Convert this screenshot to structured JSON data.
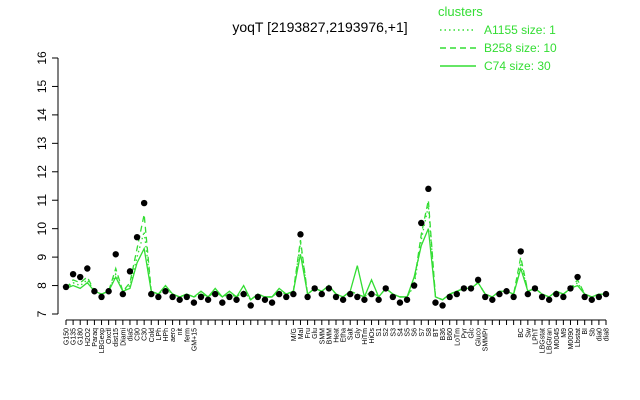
{
  "chart_data": {
    "type": "line",
    "title": "yoqT [2193827,2193976,+1]",
    "legend_title": "clusters",
    "legend": "top-right",
    "categories": [
      "G150",
      "G135",
      "G180",
      "H2O2",
      "Paraq",
      "LBGexp",
      "Oxctl",
      "dist15",
      "Diami",
      "dia5",
      "C90",
      "C30",
      "Cold",
      "LPh",
      "HPh",
      "aero",
      "nit",
      "ferm",
      "GM+15",
      null,
      null,
      null,
      null,
      null,
      null,
      null,
      null,
      null,
      null,
      null,
      null,
      null,
      "M/G",
      "Mal",
      "Fru",
      "Glu",
      "SMM",
      "BMM",
      "Heat",
      "Etha",
      "Salt",
      "Gly",
      "HiTm",
      "HiOs",
      "S1",
      "S2",
      "S3",
      "S4",
      "S5",
      "S6",
      "S7",
      "S8",
      "BT",
      "B36",
      "B60",
      "LoTm",
      "Pyr",
      "Glc",
      "Gluco",
      "SMMPr",
      null,
      null,
      null,
      null,
      "BC",
      "Sw",
      "LPhT",
      "LBGstat",
      "LBGtran",
      "M0045",
      "M9",
      "M0090",
      "Lbstat",
      "BI",
      "Sb",
      "dia0",
      "dia8"
    ],
    "series": [
      {
        "name": "A1155 size: 1",
        "color": "#33dd33",
        "dash": "dotted",
        "values": [
          7.9,
          8.1,
          8.0,
          8.2,
          7.8,
          7.7,
          7.8,
          8.4,
          7.8,
          8.0,
          9.0,
          9.9,
          7.8,
          7.7,
          7.9,
          7.7,
          7.6,
          7.7,
          7.6,
          7.7,
          7.6,
          7.8,
          7.6,
          7.7,
          7.6,
          7.8,
          7.5,
          7.7,
          7.6,
          7.6,
          7.8,
          7.7,
          7.8,
          9.5,
          7.7,
          7.9,
          7.8,
          8.0,
          7.7,
          7.6,
          7.8,
          7.7,
          7.6,
          7.8,
          7.6,
          7.9,
          7.7,
          7.6,
          7.6,
          8.0,
          9.6,
          10.8,
          7.6,
          7.5,
          7.7,
          7.8,
          7.9,
          7.9,
          8.1,
          7.7,
          7.6,
          7.8,
          7.8,
          7.7,
          8.8,
          7.8,
          7.9,
          7.7,
          7.6,
          7.8,
          7.7,
          7.9,
          8.1,
          7.7,
          7.6,
          7.7,
          7.7
        ]
      },
      {
        "name": "B258 size: 10",
        "color": "#33dd33",
        "dash": "dashed",
        "values": [
          7.9,
          8.2,
          8.1,
          8.3,
          7.8,
          7.7,
          7.8,
          8.6,
          7.8,
          8.1,
          9.3,
          10.5,
          7.8,
          7.7,
          7.9,
          7.7,
          7.6,
          7.7,
          7.6,
          7.7,
          7.6,
          7.8,
          7.6,
          7.7,
          7.6,
          7.8,
          7.5,
          7.7,
          7.6,
          7.6,
          7.8,
          7.7,
          7.8,
          9.6,
          7.7,
          7.9,
          7.8,
          8.0,
          7.7,
          7.6,
          7.8,
          7.7,
          7.6,
          7.8,
          7.6,
          7.9,
          7.7,
          7.6,
          7.6,
          8.1,
          9.8,
          11.0,
          7.6,
          7.5,
          7.7,
          7.8,
          7.9,
          7.9,
          8.1,
          7.7,
          7.6,
          7.8,
          7.8,
          7.7,
          9.0,
          7.8,
          7.9,
          7.7,
          7.6,
          7.8,
          7.7,
          7.9,
          8.2,
          7.7,
          7.6,
          7.7,
          7.7
        ]
      },
      {
        "name": "C74 size: 30",
        "color": "#33dd33",
        "dash": "solid",
        "values": [
          7.9,
          8.0,
          7.9,
          8.1,
          7.8,
          7.7,
          7.8,
          8.3,
          7.8,
          7.9,
          8.8,
          9.3,
          7.8,
          7.7,
          8.0,
          7.7,
          7.6,
          7.7,
          7.6,
          7.8,
          7.6,
          7.9,
          7.6,
          7.8,
          7.6,
          8.0,
          7.5,
          7.7,
          7.6,
          7.6,
          7.9,
          7.7,
          7.8,
          9.1,
          7.7,
          7.9,
          7.8,
          8.0,
          7.7,
          7.6,
          7.8,
          8.7,
          7.6,
          8.2,
          7.6,
          7.9,
          7.7,
          7.6,
          7.6,
          8.3,
          9.4,
          10.0,
          7.6,
          7.5,
          7.7,
          7.8,
          7.9,
          7.9,
          8.1,
          7.7,
          7.6,
          7.8,
          7.8,
          7.7,
          8.6,
          7.8,
          7.9,
          7.7,
          7.6,
          7.8,
          7.7,
          7.9,
          8.0,
          7.7,
          7.6,
          7.7,
          7.7
        ]
      }
    ],
    "points": {
      "color": "#000000",
      "values": [
        7.95,
        8.4,
        8.3,
        8.6,
        7.8,
        7.6,
        7.8,
        9.1,
        7.7,
        8.5,
        9.7,
        10.9,
        7.7,
        7.6,
        7.8,
        7.6,
        7.5,
        7.6,
        7.4,
        7.6,
        7.5,
        7.7,
        7.4,
        7.6,
        7.5,
        7.7,
        7.3,
        7.6,
        7.5,
        7.4,
        7.7,
        7.6,
        7.7,
        9.8,
        7.6,
        7.9,
        7.7,
        7.9,
        7.6,
        7.5,
        7.7,
        7.6,
        7.5,
        7.7,
        7.5,
        7.9,
        7.6,
        7.4,
        7.5,
        8.0,
        10.2,
        11.4,
        7.4,
        7.3,
        7.6,
        7.7,
        7.9,
        7.9,
        8.2,
        7.6,
        7.5,
        7.7,
        7.8,
        7.6,
        9.2,
        7.7,
        7.9,
        7.6,
        7.5,
        7.7,
        7.6,
        7.9,
        8.3,
        7.6,
        7.5,
        7.6,
        7.7
      ]
    },
    "ylim": [
      7,
      16
    ],
    "yticks": [
      7,
      8,
      9,
      10,
      11,
      12,
      13,
      14,
      15,
      16
    ]
  }
}
